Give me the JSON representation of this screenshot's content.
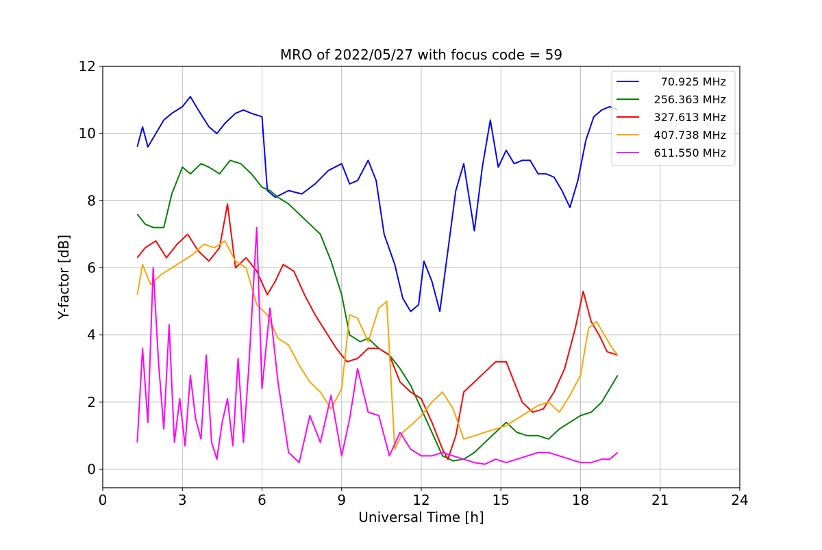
{
  "chart_data": {
    "type": "line",
    "title": "MRO of 2022/05/27 with focus code = 59",
    "xlabel": "Universal Time [h]",
    "ylabel": "Y-factor [dB]",
    "xlim": [
      0,
      24
    ],
    "ylim": [
      -0.55,
      12
    ],
    "xticks": [
      0,
      3,
      6,
      9,
      12,
      15,
      18,
      21,
      24
    ],
    "yticks": [
      0,
      2,
      4,
      6,
      8,
      10,
      12
    ],
    "grid": true,
    "legend_position": "top-right",
    "series": [
      {
        "name": "70.925 MHz",
        "color": "#0000ff",
        "x": [
          1.3,
          1.5,
          1.7,
          2.0,
          2.3,
          2.6,
          3.0,
          3.3,
          3.6,
          4.0,
          4.3,
          4.6,
          5.0,
          5.3,
          5.6,
          6.0,
          6.2,
          6.5,
          7.0,
          7.5,
          8.0,
          8.5,
          9.0,
          9.3,
          9.6,
          10.0,
          10.3,
          10.6,
          11.0,
          11.3,
          11.6,
          11.9,
          12.1,
          12.4,
          12.7,
          13.0,
          13.3,
          13.6,
          14.0,
          14.3,
          14.6,
          14.9,
          15.2,
          15.5,
          15.8,
          16.1,
          16.4,
          16.7,
          17.0,
          17.3,
          17.6,
          17.9,
          18.2,
          18.5,
          18.8,
          19.1,
          19.4
        ],
        "y": [
          9.6,
          10.2,
          9.6,
          10.0,
          10.4,
          10.6,
          10.8,
          11.1,
          10.7,
          10.2,
          10.0,
          10.3,
          10.6,
          10.7,
          10.6,
          10.5,
          8.3,
          8.1,
          8.3,
          8.2,
          8.5,
          8.9,
          9.1,
          8.5,
          8.6,
          9.2,
          8.6,
          7.0,
          6.1,
          5.1,
          4.7,
          4.9,
          6.2,
          5.6,
          4.7,
          6.5,
          8.3,
          9.1,
          7.1,
          9.0,
          10.4,
          9.0,
          9.5,
          9.1,
          9.2,
          9.2,
          8.8,
          8.8,
          8.7,
          8.3,
          7.8,
          8.6,
          9.8,
          10.5,
          10.7,
          10.8,
          10.7
        ]
      },
      {
        "name": "256.363 MHz",
        "color": "#008000",
        "x": [
          1.3,
          1.6,
          1.9,
          2.3,
          2.6,
          3.0,
          3.3,
          3.7,
          4.0,
          4.4,
          4.8,
          5.2,
          5.6,
          6.0,
          6.3,
          6.6,
          7.0,
          7.4,
          7.8,
          8.2,
          8.6,
          9.0,
          9.3,
          9.7,
          10.0,
          10.4,
          10.8,
          11.2,
          11.6,
          12.0,
          12.4,
          12.8,
          13.2,
          13.6,
          14.0,
          14.4,
          14.8,
          15.2,
          15.6,
          16.0,
          16.4,
          16.8,
          17.2,
          17.6,
          18.0,
          18.4,
          18.8,
          19.1,
          19.4
        ],
        "y": [
          7.6,
          7.3,
          7.2,
          7.2,
          8.2,
          9.0,
          8.8,
          9.1,
          9.0,
          8.8,
          9.2,
          9.1,
          8.8,
          8.4,
          8.3,
          8.1,
          7.9,
          7.6,
          7.3,
          7.0,
          6.2,
          5.2,
          4.0,
          3.8,
          3.9,
          3.6,
          3.4,
          3.0,
          2.5,
          1.8,
          1.1,
          0.4,
          0.25,
          0.3,
          0.5,
          0.8,
          1.1,
          1.4,
          1.1,
          1.0,
          1.0,
          0.9,
          1.2,
          1.4,
          1.6,
          1.7,
          2.0,
          2.4,
          2.8
        ]
      },
      {
        "name": "327.613 MHz",
        "color": "#ff0000",
        "x": [
          1.3,
          1.6,
          2.0,
          2.4,
          2.8,
          3.2,
          3.6,
          4.0,
          4.4,
          4.7,
          5.0,
          5.4,
          5.8,
          6.2,
          6.5,
          6.8,
          7.2,
          7.6,
          8.0,
          8.4,
          8.8,
          9.2,
          9.6,
          10.0,
          10.4,
          10.8,
          11.2,
          11.6,
          12.0,
          12.4,
          12.8,
          13.0,
          13.3,
          13.6,
          14.0,
          14.4,
          14.8,
          15.2,
          15.5,
          15.8,
          16.2,
          16.6,
          17.0,
          17.4,
          17.8,
          18.1,
          18.4,
          18.7,
          19.0,
          19.4
        ],
        "y": [
          6.3,
          6.6,
          6.8,
          6.3,
          6.7,
          7.0,
          6.5,
          6.2,
          6.6,
          7.9,
          6.0,
          6.3,
          5.9,
          5.2,
          5.6,
          6.1,
          5.9,
          5.2,
          4.6,
          4.1,
          3.6,
          3.2,
          3.3,
          3.6,
          3.6,
          3.4,
          2.6,
          2.3,
          2.1,
          1.4,
          0.6,
          0.3,
          1.0,
          2.3,
          2.6,
          2.9,
          3.2,
          3.2,
          2.6,
          2.0,
          1.7,
          1.8,
          2.3,
          3.0,
          4.2,
          5.3,
          4.4,
          4.0,
          3.5,
          3.4
        ]
      },
      {
        "name": "407.738 MHz",
        "color": "#ffa500",
        "x": [
          1.3,
          1.5,
          1.8,
          2.2,
          2.6,
          3.0,
          3.4,
          3.8,
          4.2,
          4.6,
          5.0,
          5.4,
          5.8,
          6.2,
          6.6,
          7.0,
          7.4,
          7.8,
          8.2,
          8.6,
          9.0,
          9.3,
          9.6,
          10.0,
          10.4,
          10.7,
          11.0,
          11.3,
          11.6,
          12.0,
          12.4,
          12.8,
          13.2,
          13.6,
          14.0,
          14.4,
          14.8,
          15.2,
          15.6,
          16.0,
          16.4,
          16.8,
          17.2,
          17.6,
          18.0,
          18.3,
          18.6,
          18.9,
          19.2,
          19.4
        ],
        "y": [
          5.2,
          6.1,
          5.5,
          5.8,
          6.0,
          6.2,
          6.4,
          6.7,
          6.6,
          6.8,
          6.2,
          6.0,
          4.9,
          4.6,
          3.9,
          3.7,
          3.1,
          2.6,
          2.3,
          1.8,
          2.4,
          4.6,
          4.5,
          3.8,
          4.8,
          5.0,
          0.6,
          1.1,
          1.3,
          1.6,
          2.0,
          2.3,
          1.8,
          0.9,
          1.0,
          1.1,
          1.2,
          1.3,
          1.5,
          1.7,
          1.9,
          2.0,
          1.7,
          2.2,
          2.8,
          4.2,
          4.4,
          4.0,
          3.6,
          3.4
        ]
      },
      {
        "name": "611.550 MHz",
        "color": "#ff00ff",
        "x": [
          1.3,
          1.5,
          1.7,
          1.9,
          2.1,
          2.3,
          2.5,
          2.7,
          2.9,
          3.1,
          3.3,
          3.5,
          3.7,
          3.9,
          4.1,
          4.3,
          4.5,
          4.7,
          4.9,
          5.1,
          5.3,
          5.5,
          5.8,
          6.0,
          6.3,
          6.6,
          7.0,
          7.4,
          7.8,
          8.2,
          8.6,
          9.0,
          9.3,
          9.6,
          10.0,
          10.4,
          10.8,
          11.2,
          11.6,
          12.0,
          12.4,
          12.8,
          13.2,
          13.6,
          14.0,
          14.4,
          14.8,
          15.2,
          15.6,
          16.0,
          16.4,
          16.8,
          17.2,
          17.6,
          18.0,
          18.4,
          18.8,
          19.1,
          19.4
        ],
        "y": [
          0.8,
          3.6,
          1.4,
          6.0,
          3.2,
          1.2,
          4.3,
          0.8,
          2.1,
          0.7,
          2.8,
          1.5,
          0.9,
          3.4,
          0.8,
          0.3,
          1.4,
          2.1,
          0.7,
          3.3,
          0.8,
          3.0,
          7.2,
          2.4,
          4.8,
          2.6,
          0.5,
          0.2,
          1.6,
          0.8,
          2.2,
          0.4,
          1.5,
          3.0,
          1.7,
          1.6,
          0.4,
          1.1,
          0.6,
          0.4,
          0.4,
          0.5,
          0.4,
          0.3,
          0.2,
          0.15,
          0.3,
          0.2,
          0.3,
          0.4,
          0.5,
          0.5,
          0.4,
          0.3,
          0.2,
          0.2,
          0.3,
          0.3,
          0.5
        ]
      }
    ]
  }
}
